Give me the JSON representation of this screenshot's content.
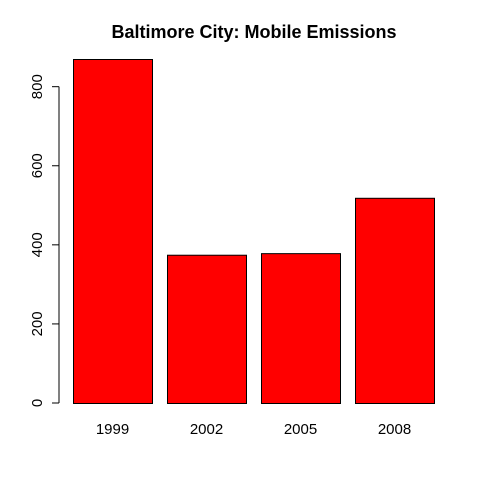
{
  "chart_data": {
    "type": "bar",
    "title": "Baltimore City: Mobile Emissions",
    "xlabel": "",
    "ylabel": "",
    "categories": [
      "1999",
      "2002",
      "2005",
      "2008"
    ],
    "values": [
      870,
      375,
      379,
      519
    ],
    "ylim": [
      0,
      870
    ],
    "yticks": [
      0,
      200,
      400,
      600,
      800
    ],
    "bar_color": "#FF0000",
    "grid": false,
    "legend": "none"
  }
}
